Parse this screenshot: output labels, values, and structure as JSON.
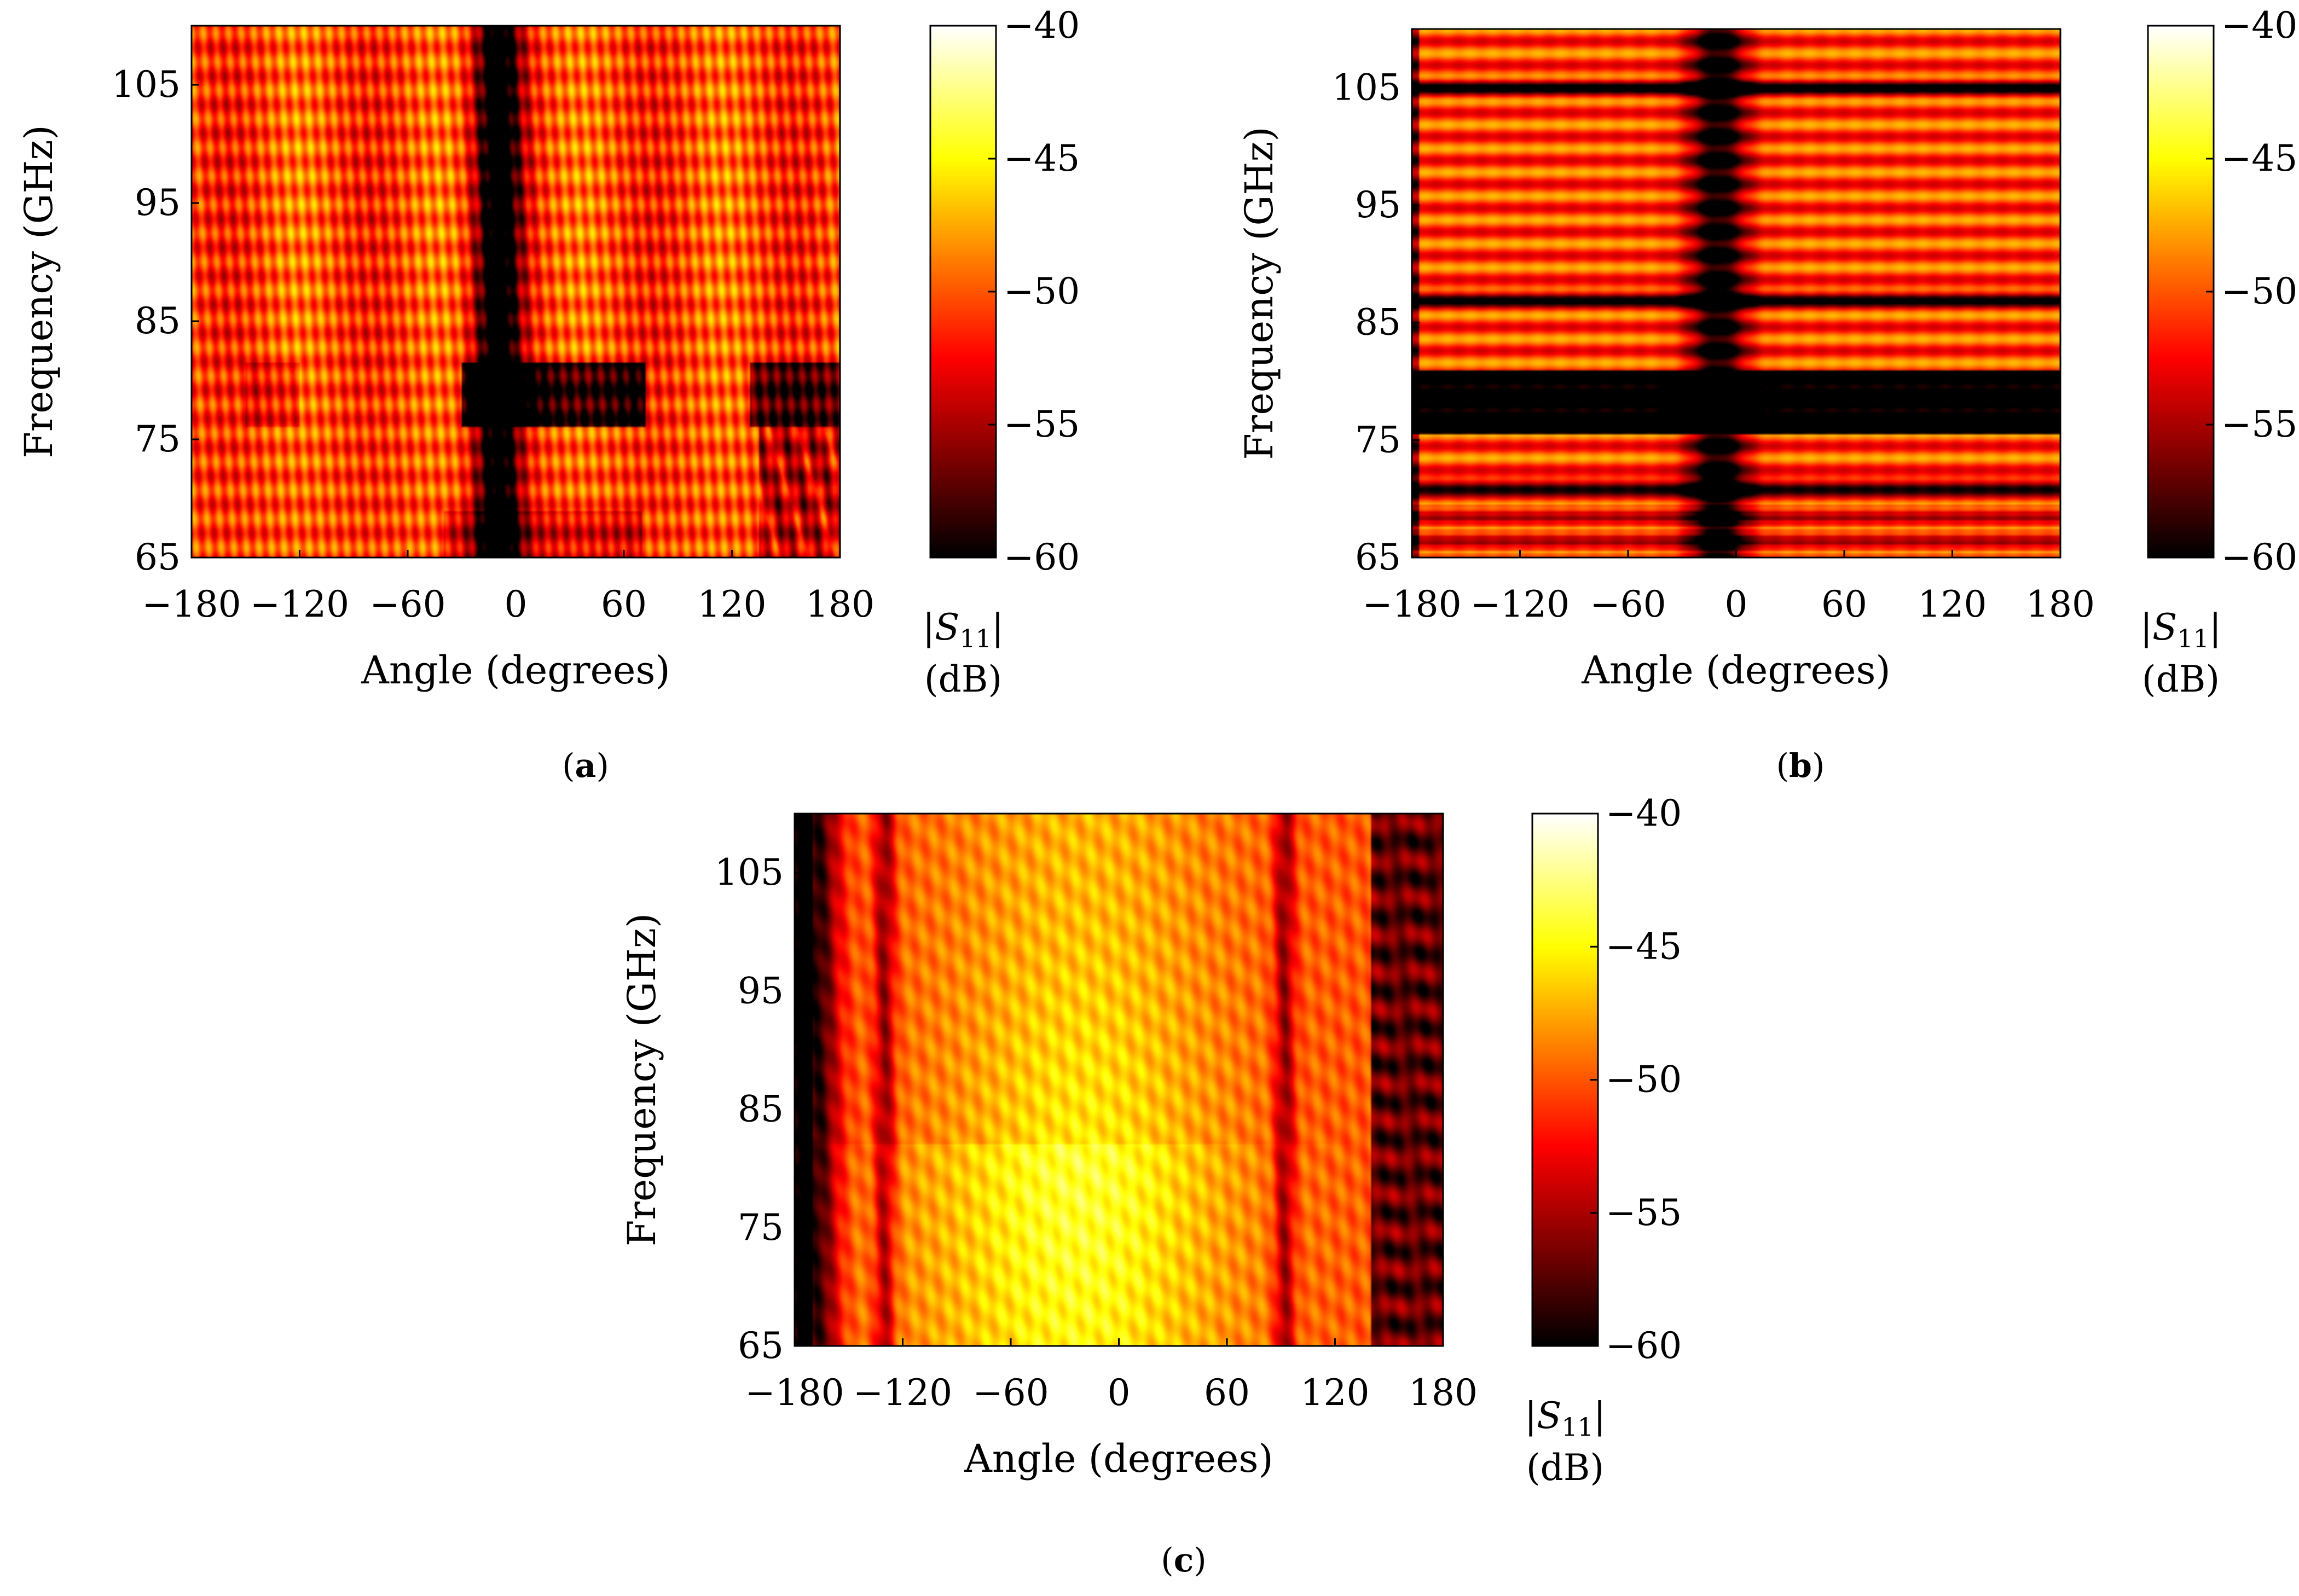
{
  "figure": {
    "panels_caption_bold": true
  },
  "chart_data": [
    {
      "type": "heatmap",
      "panel_id": "a",
      "caption": "(a)",
      "caption_letter": "a",
      "xlabel": "Angle (degrees)",
      "ylabel": "Frequency (GHz)",
      "xlim": [
        -180,
        180
      ],
      "ylim": [
        65,
        110
      ],
      "xticks": [
        -180,
        -120,
        -60,
        0,
        60,
        120,
        180
      ],
      "xtick_labels": [
        "−180",
        "−120",
        "−60",
        "0",
        "60",
        "120",
        "180"
      ],
      "yticks": [
        65,
        75,
        85,
        95,
        105
      ],
      "ytick_labels": [
        "65",
        "75",
        "85",
        "95",
        "105"
      ],
      "colorbar": {
        "label_main": "|S",
        "label_sub": "11",
        "label_end": "|",
        "unit": "(dB)",
        "range": [
          -60,
          -40
        ],
        "ticks": [
          -40,
          -45,
          -50,
          -55,
          -60
        ],
        "tick_labels": [
          "−40",
          "−45",
          "−50",
          "−55",
          "−60"
        ],
        "colormap": "hot"
      },
      "pattern": {
        "base_db": -50.5,
        "notch_angle": -10,
        "notch_width": 9,
        "low_band": [
          76,
          81.5
        ],
        "low_band_edges": [
          -30,
          72
        ],
        "fringe_strength": 3.5
      }
    },
    {
      "type": "heatmap",
      "panel_id": "b",
      "caption": "(b)",
      "caption_letter": "b",
      "xlabel": "Angle (degrees)",
      "ylabel": "Frequency (GHz)",
      "xlim": [
        -180,
        180
      ],
      "ylim": [
        65,
        110
      ],
      "xticks": [
        -180,
        -120,
        -60,
        0,
        60,
        120,
        180
      ],
      "xtick_labels": [
        "−180",
        "−120",
        "−60",
        "0",
        "60",
        "120",
        "180"
      ],
      "yticks": [
        65,
        75,
        85,
        95,
        105
      ],
      "ytick_labels": [
        "65",
        "75",
        "85",
        "95",
        "105"
      ],
      "colorbar": {
        "label_main": "|S",
        "label_sub": "11",
        "label_end": "|",
        "unit": "(dB)",
        "range": [
          -60,
          -40
        ],
        "ticks": [
          -40,
          -45,
          -50,
          -55,
          -60
        ],
        "tick_labels": [
          "−40",
          "−45",
          "−50",
          "−55",
          "−60"
        ],
        "colormap": "hot"
      },
      "pattern": {
        "base_db": -50.5,
        "notch_angle": -10,
        "notch_width": 11,
        "low_band": [
          75.5,
          81
        ],
        "dark_lines_ghz": [
          71,
          87,
          105
        ],
        "fringe_strength": 4.5
      }
    },
    {
      "type": "heatmap",
      "panel_id": "c",
      "caption": "(c)",
      "caption_letter": "c",
      "xlabel": "Angle (degrees)",
      "ylabel": "Frequency (GHz)",
      "xlim": [
        -180,
        180
      ],
      "ylim": [
        65,
        110
      ],
      "xticks": [
        -180,
        -120,
        -60,
        0,
        60,
        120,
        180
      ],
      "xtick_labels": [
        "−180",
        "−120",
        "−60",
        "0",
        "60",
        "120",
        "180"
      ],
      "yticks": [
        65,
        75,
        85,
        95,
        105
      ],
      "ytick_labels": [
        "65",
        "75",
        "85",
        "95",
        "105"
      ],
      "colorbar": {
        "label_main": "|S",
        "label_sub": "11",
        "label_end": "|",
        "unit": "(dB)",
        "range": [
          -60,
          -40
        ],
        "ticks": [
          -40,
          -45,
          -50,
          -55,
          -60
        ],
        "tick_labels": [
          "−40",
          "−45",
          "−50",
          "−55",
          "−60"
        ],
        "colormap": "hot"
      },
      "pattern": {
        "base_db": -50,
        "peak_angle": -20,
        "dark_edges": [
          -168,
          140
        ],
        "dark_lines_angle": [
          -130,
          92
        ],
        "fringe_strength": 3
      }
    }
  ]
}
